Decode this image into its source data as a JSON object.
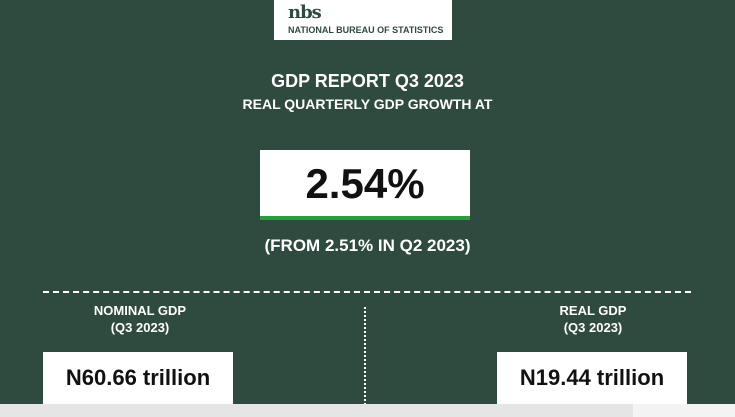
{
  "logo": {
    "mark": "nbs",
    "org_name": "NATIONAL BUREAU OF STATISTICS"
  },
  "header": {
    "title": "GDP REPORT Q3 2023",
    "subtitle": "REAL QUARTERLY GDP GROWTH  AT"
  },
  "growth": {
    "value": "2.54%",
    "comparison": "(FROM 2.51% IN Q2 2023)"
  },
  "nominal_gdp": {
    "label": "NOMINAL GDP",
    "period": "(Q3 2023)",
    "value": "N60.66 trillion"
  },
  "real_gdp": {
    "label": "REAL GDP",
    "period": "(Q3 2023)",
    "value": "N19.44 trillion"
  },
  "colors": {
    "background": "#2f4a3e",
    "accent_green": "#2e9b3e",
    "box": "#ffffff"
  }
}
